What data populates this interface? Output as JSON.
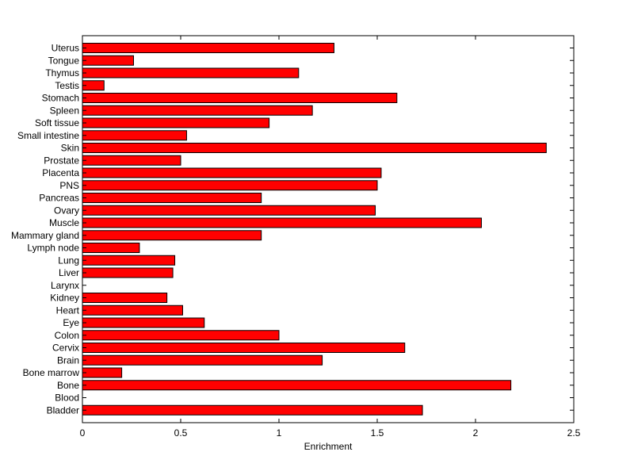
{
  "chart_data": {
    "type": "bar",
    "orientation": "horizontal",
    "title": "",
    "xlabel": "Enrichment",
    "ylabel": "",
    "xlim": [
      0,
      2.5
    ],
    "xticks": [
      "0",
      "0.5",
      "1",
      "1.5",
      "2",
      "2.5"
    ],
    "xtick_values": [
      0,
      0.5,
      1,
      1.5,
      2,
      2.5
    ],
    "grid": false,
    "bar_color": "#ff0000",
    "edge_color": "#000000",
    "categories": [
      "Uterus",
      "Tongue",
      "Thymus",
      "Testis",
      "Stomach",
      "Spleen",
      "Soft tissue",
      "Small intestine",
      "Skin",
      "Prostate",
      "Placenta",
      "PNS",
      "Pancreas",
      "Ovary",
      "Muscle",
      "Mammary gland",
      "Lymph node",
      "Lung",
      "Liver",
      "Larynx",
      "Kidney",
      "Heart",
      "Eye",
      "Colon",
      "Cervix",
      "Brain",
      "Bone marrow",
      "Bone",
      "Blood",
      "Bladder"
    ],
    "values": [
      1.28,
      0.26,
      1.1,
      0.11,
      1.6,
      1.17,
      0.95,
      0.53,
      2.36,
      0.5,
      1.52,
      1.5,
      0.91,
      1.49,
      2.03,
      0.91,
      0.29,
      0.47,
      0.46,
      0.0,
      0.43,
      0.51,
      0.62,
      1.0,
      1.64,
      1.22,
      0.2,
      2.18,
      0.0,
      1.73
    ]
  }
}
